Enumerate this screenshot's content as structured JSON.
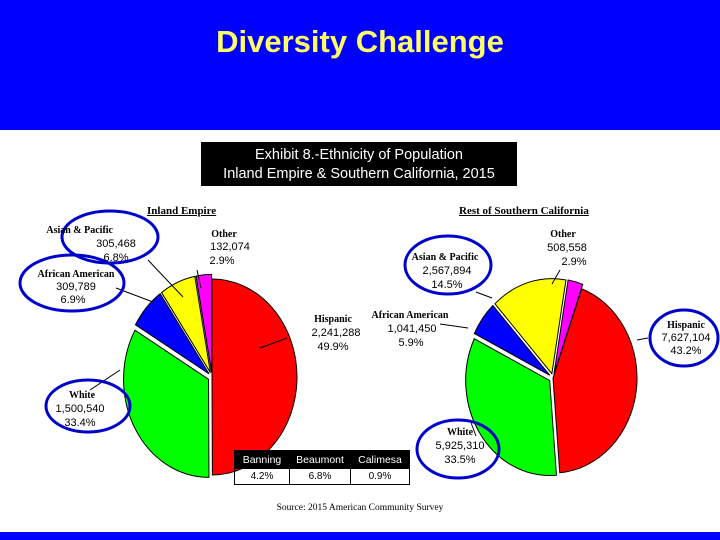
{
  "slide": {
    "title": "Diversity Challenge"
  },
  "exhibit": {
    "line1": "Exhibit 8.-Ethnicity of Population",
    "line2": "Inland Empire & Southern California, 2015"
  },
  "colors": {
    "background": "#0000ff",
    "title": "#ffff66",
    "hispanic": "#ff0000",
    "white": "#00ff00",
    "african_american": "#0000ff",
    "asian_pacific": "#ffff00",
    "other": "#ff00ff",
    "callout_outline": "#0000cc"
  },
  "chart_data": [
    {
      "type": "pie",
      "title": "Inland Empire",
      "series": [
        {
          "name": "Hispanic",
          "value": 2241288,
          "value_label": "2,241,288",
          "percent_label": "49.9%",
          "color": "#ff0000"
        },
        {
          "name": "White",
          "value": 1500540,
          "value_label": "1,500,540",
          "percent_label": "33.4%",
          "color": "#00ff00"
        },
        {
          "name": "African American",
          "value": 309789,
          "value_label": "309,789",
          "percent_label": "6.9%",
          "color": "#0000ff"
        },
        {
          "name": "Asian & Pacific",
          "value": 305468,
          "value_label": "305,468",
          "percent_label": "6.8%",
          "color": "#ffff00"
        },
        {
          "name": "Other",
          "value": 132074,
          "value_label": "132,074",
          "percent_label": "2.9%",
          "color": "#ff00ff"
        }
      ]
    },
    {
      "type": "pie",
      "title": "Rest of Southern California",
      "series": [
        {
          "name": "Hispanic",
          "value": 7627104,
          "value_label": "7,627,104",
          "percent_label": "43.2%",
          "color": "#ff0000"
        },
        {
          "name": "White",
          "value": 5925310,
          "value_label": "5,925,310",
          "percent_label": "33.5%",
          "color": "#00ff00"
        },
        {
          "name": "African American",
          "value": 1041450,
          "value_label": "1,041,450",
          "percent_label": "5.9%",
          "color": "#0000ff"
        },
        {
          "name": "Asian & Pacific",
          "value": 2567894,
          "value_label": "2,567,894",
          "percent_label": "14.5%",
          "color": "#ffff00"
        },
        {
          "name": "Other",
          "value": 508558,
          "value_label": "508,558",
          "percent_label": "2.9%",
          "color": "#ff00ff"
        }
      ]
    },
    {
      "type": "table",
      "columns": [
        "Banning",
        "Beaumont",
        "Calimesa"
      ],
      "rows": [
        [
          "4.2%",
          "6.8%",
          "0.9%"
        ]
      ]
    }
  ],
  "left_labels": {
    "asian_name": "Asian & Pacific",
    "african_name": "African American"
  },
  "source": "Source:  2015 American Community Survey"
}
